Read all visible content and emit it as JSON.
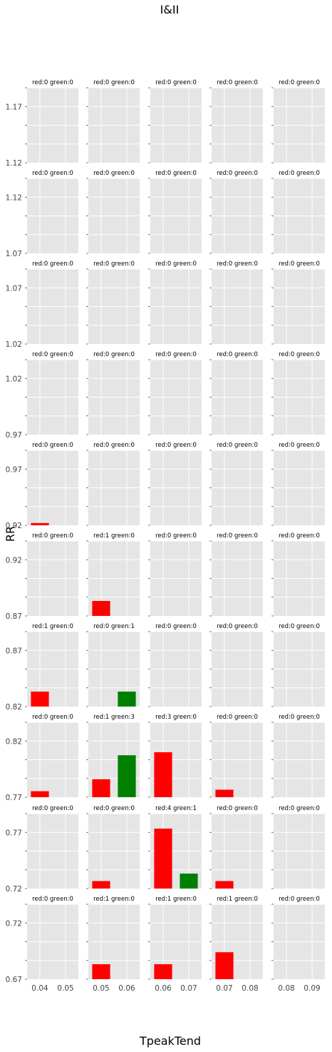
{
  "chart_data": {
    "type": "bar",
    "suptitle": "I&II",
    "xlabel": "TpeakTend",
    "ylabel": "RR",
    "grid": true,
    "series_colors": {
      "red": "#ff0000",
      "green": "#008000"
    },
    "col_x_ranges": [
      [
        0.035,
        0.055
      ],
      [
        0.045,
        0.065
      ],
      [
        0.055,
        0.075
      ],
      [
        0.065,
        0.085
      ],
      [
        0.075,
        0.095
      ]
    ],
    "col_xticks": [
      [
        0.04,
        0.05
      ],
      [
        0.05,
        0.06
      ],
      [
        0.06,
        0.07
      ],
      [
        0.07,
        0.08
      ],
      [
        0.08,
        0.09
      ]
    ],
    "col_xtick_labels": [
      [
        "0.04",
        "0.05"
      ],
      [
        "0.05",
        "0.06"
      ],
      [
        "0.06",
        "0.07"
      ],
      [
        "0.07",
        "0.08"
      ],
      [
        "0.08",
        "0.09"
      ]
    ],
    "y_scale_max": 5,
    "rows": [
      {
        "ylim": [
          1.12,
          1.19
        ],
        "yticks": [
          "1.17",
          "1.12"
        ],
        "panels": [
          {
            "title": "red:0 green:0",
            "red": 0,
            "green": 0
          },
          {
            "title": "red:0 green:0",
            "red": 0,
            "green": 0
          },
          {
            "title": "red:0 green:0",
            "red": 0,
            "green": 0
          },
          {
            "title": "red:0 green:0",
            "red": 0,
            "green": 0
          },
          {
            "title": "red:0 green:0",
            "red": 0,
            "green": 0
          }
        ]
      },
      {
        "ylim": [
          1.07,
          1.14
        ],
        "yticks": [
          "1.12",
          "1.07"
        ],
        "panels": [
          {
            "title": "red:0 green:0",
            "red": 0,
            "green": 0
          },
          {
            "title": "red:0 green:0",
            "red": 0,
            "green": 0
          },
          {
            "title": "red:0 green:0",
            "red": 0,
            "green": 0
          },
          {
            "title": "red:0 green:0",
            "red": 0,
            "green": 0
          },
          {
            "title": "red:0 green:0",
            "red": 0,
            "green": 0
          }
        ]
      },
      {
        "ylim": [
          1.02,
          1.09
        ],
        "yticks": [
          "1.07",
          "1.02"
        ],
        "panels": [
          {
            "title": "red:0 green:0",
            "red": 0,
            "green": 0
          },
          {
            "title": "red:0 green:0",
            "red": 0,
            "green": 0
          },
          {
            "title": "red:0 green:0",
            "red": 0,
            "green": 0
          },
          {
            "title": "red:0 green:0",
            "red": 0,
            "green": 0
          },
          {
            "title": "red:0 green:0",
            "red": 0,
            "green": 0
          }
        ]
      },
      {
        "ylim": [
          0.97,
          1.04
        ],
        "yticks": [
          "1.02",
          "0.97"
        ],
        "panels": [
          {
            "title": "red:0 green:0",
            "red": 0,
            "green": 0
          },
          {
            "title": "red:0 green:0",
            "red": 0,
            "green": 0
          },
          {
            "title": "red:0 green:0",
            "red": 0,
            "green": 0
          },
          {
            "title": "red:0 green:0",
            "red": 0,
            "green": 0
          },
          {
            "title": "red:0 green:0",
            "red": 0,
            "green": 0
          }
        ]
      },
      {
        "ylim": [
          0.92,
          0.99
        ],
        "yticks": [
          "0.97",
          "0.92"
        ],
        "panels": [
          {
            "title": "red:0 green:0",
            "red": 0,
            "green": 0,
            "red_bar": 0.15
          },
          {
            "title": "red:0 green:0",
            "red": 0,
            "green": 0
          },
          {
            "title": "red:0 green:0",
            "red": 0,
            "green": 0
          },
          {
            "title": "red:0 green:0",
            "red": 0,
            "green": 0
          },
          {
            "title": "red:0 green:0",
            "red": 0,
            "green": 0
          }
        ]
      },
      {
        "ylim": [
          0.87,
          0.94
        ],
        "yticks": [
          "0.92",
          "0.87"
        ],
        "panels": [
          {
            "title": "red:0 green:0",
            "red": 0,
            "green": 0
          },
          {
            "title": "red:1 green:0",
            "red": 1,
            "green": 0
          },
          {
            "title": "red:0 green:0",
            "red": 0,
            "green": 0
          },
          {
            "title": "red:0 green:0",
            "red": 0,
            "green": 0
          },
          {
            "title": "red:0 green:0",
            "red": 0,
            "green": 0
          }
        ]
      },
      {
        "ylim": [
          0.82,
          0.89
        ],
        "yticks": [
          "0.87",
          "0.82"
        ],
        "panels": [
          {
            "title": "red:1 green:0",
            "red": 1,
            "green": 0
          },
          {
            "title": "red:0 green:1",
            "red": 0,
            "green": 1
          },
          {
            "title": "red:0 green:0",
            "red": 0,
            "green": 0
          },
          {
            "title": "red:0 green:0",
            "red": 0,
            "green": 0
          },
          {
            "title": "red:0 green:0",
            "red": 0,
            "green": 0
          }
        ]
      },
      {
        "ylim": [
          0.77,
          0.84
        ],
        "yticks": [
          "0.82",
          "0.77"
        ],
        "panels": [
          {
            "title": "red:0 green:0",
            "red": 0,
            "green": 0,
            "red_bar": 0.4
          },
          {
            "title": "red:1 green:3",
            "red": 1,
            "green": 3,
            "red_bar": 1.2,
            "green_bar": 2.8
          },
          {
            "title": "red:3 green:0",
            "red": 3,
            "green": 0
          },
          {
            "title": "red:0 green:0",
            "red": 0,
            "green": 0,
            "red_bar": 0.5
          },
          {
            "title": "red:0 green:0",
            "red": 0,
            "green": 0
          }
        ]
      },
      {
        "ylim": [
          0.72,
          0.79
        ],
        "yticks": [
          "0.77",
          "0.72"
        ],
        "panels": [
          {
            "title": "red:0 green:0",
            "red": 0,
            "green": 0
          },
          {
            "title": "red:0 green:0",
            "red": 0,
            "green": 0,
            "red_bar": 0.5
          },
          {
            "title": "red:4 green:1",
            "red": 4,
            "green": 1
          },
          {
            "title": "red:0 green:0",
            "red": 0,
            "green": 0,
            "red_bar": 0.5
          },
          {
            "title": "red:0 green:0",
            "red": 0,
            "green": 0
          }
        ]
      },
      {
        "ylim": [
          0.67,
          0.74
        ],
        "yticks": [
          "0.72",
          "0.67"
        ],
        "panels": [
          {
            "title": "red:0 green:0",
            "red": 0,
            "green": 0
          },
          {
            "title": "red:1 green:0",
            "red": 1,
            "green": 0
          },
          {
            "title": "red:1 green:0",
            "red": 1,
            "green": 0
          },
          {
            "title": "red:1 green:0",
            "red": 1,
            "green": 0,
            "red_bar": 1.8
          },
          {
            "title": "red:0 green:0",
            "red": 0,
            "green": 0
          }
        ]
      }
    ]
  }
}
